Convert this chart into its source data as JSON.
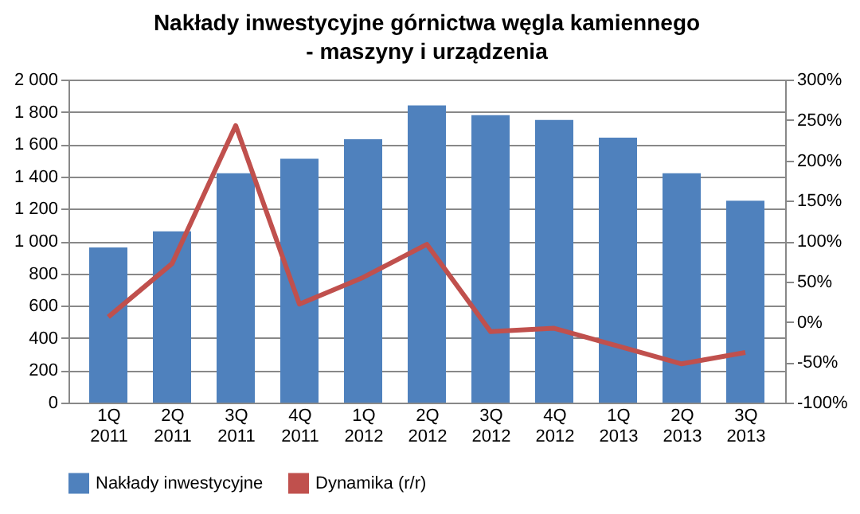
{
  "chart_data": {
    "type": "bar",
    "title": "Nakłady inwestycyjne górnictwa węgla kamiennego - maszyny i urządzenia",
    "categories": [
      "1Q 2011",
      "2Q 2011",
      "3Q 2011",
      "4Q 2011",
      "1Q 2012",
      "2Q 2012",
      "3Q 2012",
      "4Q 2012",
      "1Q 2013",
      "2Q 2013",
      "3Q 2013"
    ],
    "series": [
      {
        "name": "Nakłady inwestycyjne",
        "color": "#4f81bd",
        "values": [
          960,
          1060,
          1420,
          1510,
          1630,
          1840,
          1780,
          1750,
          1640,
          1420,
          1250
        ]
      },
      {
        "name": "Dynamika (r/r)",
        "color": "#c0504d",
        "type": "line",
        "axis": "y2",
        "values": [
          6,
          72,
          243,
          22,
          55,
          96,
          -12,
          -8,
          -30,
          -52,
          -38
        ]
      }
    ],
    "ylim": [
      0,
      2000
    ],
    "yticks": [
      0,
      200,
      400,
      600,
      800,
      {
        "value": 1000,
        "label": "1 000"
      },
      {
        "value": 1200,
        "label": "1 200"
      },
      {
        "value": 1400,
        "label": "1 400"
      },
      {
        "value": 1600,
        "label": "1 600"
      },
      {
        "value": 1800,
        "label": "1 800"
      },
      {
        "value": 2000,
        "label": "2 000"
      }
    ],
    "y2lim": [
      -100,
      300
    ],
    "y2ticks": [
      {
        "value": -100,
        "label": "-100%"
      },
      {
        "value": -50,
        "label": "-50%"
      },
      {
        "value": 0,
        "label": "0%"
      },
      {
        "value": 50,
        "label": "50%"
      },
      {
        "value": 100,
        "label": "100%"
      },
      {
        "value": 150,
        "label": "150%"
      },
      {
        "value": 200,
        "label": "200%"
      },
      {
        "value": 250,
        "label": "250%"
      },
      {
        "value": 300,
        "label": "300%"
      }
    ],
    "grid": "y",
    "legend": "bottom"
  }
}
